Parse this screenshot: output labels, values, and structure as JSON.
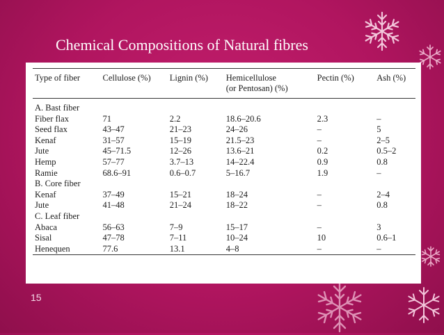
{
  "title": "Chemical Compositions of Natural fibres",
  "page_number": "15",
  "table": {
    "headers": {
      "type": "Type of fiber",
      "cellulose": "Cellulose (%)",
      "lignin": "Lignin (%)",
      "hemi_1": "Hemicellulose",
      "hemi_2": "(or Pentosan) (%)",
      "pectin": "Pectin (%)",
      "ash": "Ash (%)"
    },
    "sections": {
      "bast": "A. Bast fiber",
      "core": "B. Core fiber",
      "leaf": "C. Leaf fiber"
    },
    "rows": [
      {
        "type": "Fiber flax",
        "cellulose": "71",
        "lignin": "2.2",
        "hemicellulose": "18.6–20.6",
        "pectin": "2.3",
        "ash": "–"
      },
      {
        "type": "Seed flax",
        "cellulose": "43–47",
        "lignin": "21–23",
        "hemicellulose": "24–26",
        "pectin": "–",
        "ash": "5"
      },
      {
        "type": "Kenaf",
        "cellulose": "31–57",
        "lignin": "15–19",
        "hemicellulose": "21.5–23",
        "pectin": "–",
        "ash": "2–5"
      },
      {
        "type": "Jute",
        "cellulose": "45–71.5",
        "lignin": "12–26",
        "hemicellulose": "13.6–21",
        "pectin": "0.2",
        "ash": "0.5–2"
      },
      {
        "type": "Hemp",
        "cellulose": "57–77",
        "lignin": "3.7–13",
        "hemicellulose": "14–22.4",
        "pectin": "0.9",
        "ash": "0.8"
      },
      {
        "type": "Ramie",
        "cellulose": "68.6–91",
        "lignin": "0.6–0.7",
        "hemicellulose": "5–16.7",
        "pectin": "1.9",
        "ash": "–"
      },
      {
        "type": "Kenaf",
        "cellulose": "37–49",
        "lignin": "15–21",
        "hemicellulose": "18–24",
        "pectin": "–",
        "ash": "2–4"
      },
      {
        "type": "Jute",
        "cellulose": "41–48",
        "lignin": "21–24",
        "hemicellulose": "18–22",
        "pectin": "–",
        "ash": "0.8"
      },
      {
        "type": "Abaca",
        "cellulose": "56–63",
        "lignin": "7–9",
        "hemicellulose": "15–17",
        "pectin": "–",
        "ash": "3"
      },
      {
        "type": "Sisal",
        "cellulose": "47–78",
        "lignin": "7–11",
        "hemicellulose": "10–24",
        "pectin": "10",
        "ash": "0.6–1"
      },
      {
        "type": "Henequen",
        "cellulose": "77.6",
        "lignin": "13.1",
        "hemicellulose": "4–8",
        "pectin": "–",
        "ash": "–"
      }
    ]
  },
  "decoration": {
    "flake_color": "#f3c6db"
  }
}
